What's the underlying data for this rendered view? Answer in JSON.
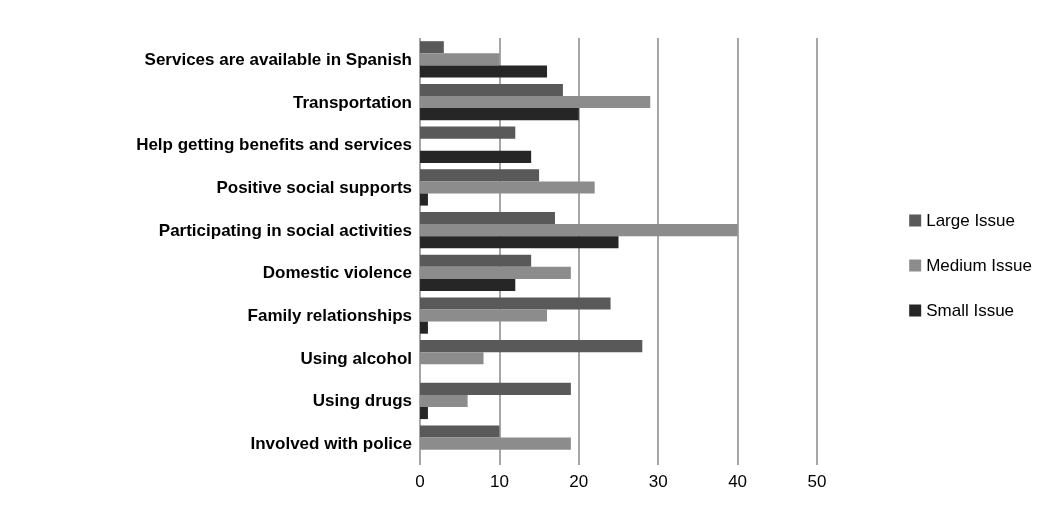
{
  "chart_data": {
    "type": "bar",
    "orientation": "horizontal",
    "categories": [
      "Services are available in Spanish",
      "Transportation",
      "Help getting benefits and services",
      "Positive social supports",
      "Participating in social activities",
      "Domestic violence",
      "Family relationships",
      "Using alcohol",
      "Using drugs",
      "Involved with police"
    ],
    "series": [
      {
        "name": "Large Issue",
        "color": "#595959",
        "values": [
          3,
          18,
          12,
          15,
          17,
          14,
          24,
          28,
          19,
          10
        ]
      },
      {
        "name": "Medium Issue",
        "color": "#8c8c8c",
        "values": [
          10,
          29,
          0,
          22,
          40,
          19,
          16,
          8,
          6,
          19
        ]
      },
      {
        "name": "Small Issue",
        "color": "#262626",
        "values": [
          16,
          20,
          14,
          1,
          25,
          12,
          1,
          0,
          1,
          0
        ]
      }
    ],
    "xlim": [
      0,
      50
    ],
    "xticks": [
      0,
      10,
      20,
      30,
      40,
      50
    ],
    "grid": "x",
    "legend": "right"
  }
}
